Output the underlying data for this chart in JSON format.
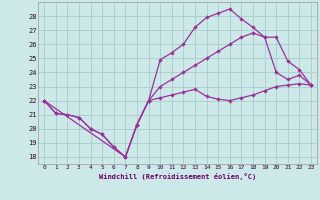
{
  "xlabel": "Windchill (Refroidissement éolien,°C)",
  "bg_color": "#cce8e8",
  "grid_color": "#aacccc",
  "line_color": "#993399",
  "ylim": [
    17.5,
    29.0
  ],
  "xlim": [
    -0.5,
    23.5
  ],
  "yticks": [
    18,
    19,
    20,
    21,
    22,
    23,
    24,
    25,
    26,
    27,
    28
  ],
  "xticks": [
    0,
    1,
    2,
    3,
    4,
    5,
    6,
    7,
    8,
    9,
    10,
    11,
    12,
    13,
    14,
    15,
    16,
    17,
    18,
    19,
    20,
    21,
    22,
    23
  ],
  "curve1_x": [
    0,
    1,
    2,
    3,
    4,
    5,
    6,
    7,
    8,
    9,
    10,
    11,
    12,
    13,
    14,
    15,
    16,
    17,
    18,
    19,
    20,
    21,
    22,
    23
  ],
  "curve1_y": [
    22.0,
    21.1,
    21.0,
    20.8,
    20.0,
    19.6,
    18.7,
    18.0,
    20.3,
    22.0,
    22.2,
    22.4,
    22.6,
    22.8,
    22.3,
    22.1,
    22.0,
    22.2,
    22.4,
    22.7,
    23.0,
    23.1,
    23.2,
    23.1
  ],
  "curve2_x": [
    0,
    1,
    2,
    3,
    4,
    5,
    6,
    7,
    8,
    9,
    10,
    11,
    12,
    13,
    14,
    15,
    16,
    17,
    18,
    19,
    20,
    21,
    22,
    23
  ],
  "curve2_y": [
    22.0,
    21.1,
    21.0,
    20.8,
    20.0,
    19.6,
    18.7,
    18.0,
    20.3,
    22.0,
    24.9,
    25.4,
    26.0,
    27.2,
    27.9,
    28.2,
    28.5,
    27.8,
    27.2,
    26.5,
    24.0,
    23.5,
    23.8,
    23.1
  ],
  "curve3_x": [
    0,
    7,
    8,
    9,
    10,
    11,
    12,
    13,
    14,
    15,
    16,
    17,
    18,
    19,
    20,
    21,
    22,
    23
  ],
  "curve3_y": [
    22.0,
    18.0,
    20.3,
    22.0,
    23.0,
    23.5,
    24.0,
    24.5,
    25.0,
    25.5,
    26.0,
    26.5,
    26.8,
    26.5,
    26.5,
    24.8,
    24.2,
    23.1
  ]
}
